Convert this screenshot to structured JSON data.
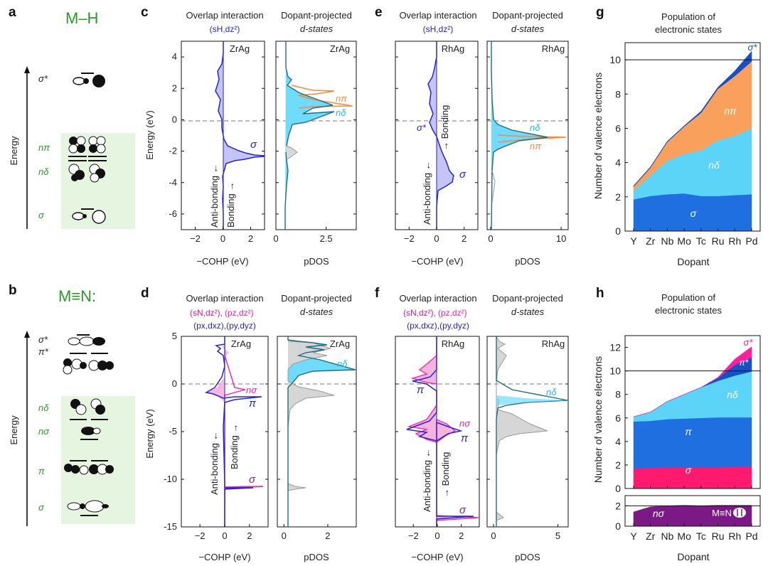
{
  "panel_letters": {
    "a": "a",
    "b": "b",
    "c": "c",
    "d": "d",
    "e": "e",
    "f": "f",
    "g": "g",
    "h": "h"
  },
  "mo_diagrams": [
    {
      "panel": "a",
      "formula": "M–H",
      "energy_label": "Energy",
      "levels": [
        {
          "label": "σ*"
        },
        {
          "label": "nπ"
        },
        {
          "label": "nδ"
        },
        {
          "label": "σ"
        }
      ]
    },
    {
      "panel": "b",
      "formula": "M≡N:",
      "energy_label": "Energy",
      "levels": [
        {
          "label": "σ*"
        },
        {
          "label": "π*"
        },
        {
          "label": "nδ"
        },
        {
          "label": "nσ"
        },
        {
          "label": "π"
        },
        {
          "label": "σ"
        }
      ]
    }
  ],
  "colors": {
    "cohp": "#2424d8",
    "cohp_fill": "#b4b4f0",
    "pink": "#ff1e9b",
    "pdos_cyan": "#4fd3ff",
    "pdos_line": "#1c7a8c",
    "orange": "#f58a3c",
    "gray": "#9a9a9a",
    "sigma_blue": "#1f6fe0",
    "ndelta": "#5bd4f8",
    "npi": "#f8a05c",
    "sigmastar": "#1450c8",
    "purple": "#7b1a86",
    "green_text": "#2a9a2a",
    "green_box": "#e6f5e0"
  },
  "chart_data": [
    {
      "panel": "c",
      "type": "line",
      "title": "Overlap interaction",
      "subtitle": "(sH,dz²)",
      "label": "ZrAg",
      "xlabel": "−COHP (eV)",
      "ylabel": "Energy (eV)",
      "xlim": [
        -3,
        3
      ],
      "ylim": [
        -7,
        5
      ],
      "xticks": [
        -2,
        0,
        2
      ],
      "yticks": [
        -6,
        -4,
        -2,
        0,
        2,
        4
      ],
      "annotations": [
        {
          "text": "σ",
          "x": 1.3,
          "y": -1.5
        },
        {
          "text": "Anti-bonding ←"
        },
        {
          "text": "Bonding →"
        }
      ]
    },
    {
      "panel": "c2",
      "type": "line",
      "title": "Dopant-projected",
      "subtitle": "d-states",
      "label": "ZrAg",
      "xlabel": "pDOS",
      "xlim": [
        0,
        4
      ],
      "ylim": [
        -7,
        5
      ],
      "xticks": [
        0,
        2.5
      ],
      "annotations": [
        {
          "text": "nπ",
          "x": 2.8,
          "y": 1.5
        },
        {
          "text": "nδ",
          "x": 2.8,
          "y": 0.5
        }
      ]
    },
    {
      "panel": "e",
      "type": "line",
      "title": "Overlap interaction",
      "subtitle": "(sH,dz²)",
      "label": "RhAg",
      "xlabel": "−COHP (eV)",
      "xlim": [
        -3,
        3
      ],
      "ylim": [
        -7,
        5
      ],
      "xticks": [
        -2,
        0,
        2
      ],
      "annotations": [
        {
          "text": "σ*",
          "x": -0.5,
          "y": -0.4
        },
        {
          "text": "σ",
          "x": 1.6,
          "y": -3.4
        },
        {
          "text": "Anti-bonding ←"
        },
        {
          "text": "→ Bonding"
        }
      ]
    },
    {
      "panel": "e2",
      "type": "line",
      "title": "Dopant-projected",
      "subtitle": "d-states",
      "label": "RhAg",
      "xlabel": "pDOS",
      "xlim": [
        -0.5,
        11
      ],
      "ylim": [
        -7,
        5
      ],
      "xticks": [
        0,
        10
      ],
      "annotations": [
        {
          "text": "nδ",
          "x": 5.5,
          "y": -0.4
        },
        {
          "text": "nπ",
          "x": 5.5,
          "y": -1.5
        }
      ]
    },
    {
      "panel": "d",
      "type": "line",
      "title": "Overlap interaction",
      "subtitle_line1": {
        "a": "(sN,dz²),",
        "b": "(pz,dz²)"
      },
      "subtitle_line2": "(px,dxz),(py,dyz)",
      "label": "ZrAg",
      "xlabel": "−COHP (eV)",
      "ylabel": "Energy (eV)",
      "xlim": [
        -3.5,
        3.5
      ],
      "ylim": [
        -15,
        5
      ],
      "xticks": [
        -2,
        0,
        2
      ],
      "yticks": [
        -15,
        -10,
        -5,
        0,
        5
      ],
      "annotations": [
        {
          "text": "nσ",
          "x": 1.3,
          "y": -0.5
        },
        {
          "text": "π",
          "x": 1.3,
          "y": -1.6
        },
        {
          "text": "σ",
          "x": 1.3,
          "y": -10.4
        },
        {
          "text": "Anti-bonding ←"
        },
        {
          "text": "Bonding →"
        }
      ]
    },
    {
      "panel": "d2",
      "type": "line",
      "title": "Dopant-projected",
      "subtitle": "d-states",
      "label": "ZrAg",
      "xlabel": "pDOS",
      "xlim": [
        -0.3,
        3.3
      ],
      "ylim": [
        -15,
        5
      ],
      "xticks": [
        0,
        2
      ],
      "annotations": [
        {
          "text": "nδ",
          "x": 2.2,
          "y": 1.6
        }
      ]
    },
    {
      "panel": "f",
      "type": "line",
      "title": "Overlap interaction",
      "subtitle_line1": {
        "a": "(sN,dz²),",
        "b": "(pz,dz²)"
      },
      "subtitle_line2": "(px,dxz),(py,dyz)",
      "label": "RhAg",
      "xlabel": "−COHP (eV)",
      "xlim": [
        -3.5,
        3.5
      ],
      "ylim": [
        -15,
        5
      ],
      "xticks": [
        -2,
        0,
        2
      ],
      "annotations": [
        {
          "text": "π",
          "x": -1.1,
          "y": -0.5
        },
        {
          "text": "nσ",
          "x": 1.3,
          "y": -4.3
        },
        {
          "text": "π",
          "x": 1.3,
          "y": -5.6
        },
        {
          "text": "σ",
          "x": 1.3,
          "y": -13.8
        },
        {
          "text": "Anti-bonding ←"
        },
        {
          "text": "→ Bonding"
        }
      ]
    },
    {
      "panel": "f2",
      "type": "line",
      "title": "Dopant-projected",
      "subtitle": "d-states",
      "label": "RhAg",
      "xlabel": "pDOS",
      "xlim": [
        -0.5,
        5.8
      ],
      "ylim": [
        -15,
        5
      ],
      "xticks": [
        0,
        5
      ],
      "annotations": [
        {
          "text": "nδ",
          "x": 3.6,
          "y": -0.5
        }
      ]
    },
    {
      "panel": "g",
      "type": "area",
      "title": "Population of",
      "title2": "electronic states",
      "xlabel": "Dopant",
      "ylabel": "Number of valence electrons",
      "categories": [
        "Y",
        "Zr",
        "Nb",
        "Mo",
        "Tc",
        "Ru",
        "Rh",
        "Pd"
      ],
      "ylim": [
        0,
        11
      ],
      "yticks": [
        0,
        2,
        4,
        6,
        8,
        10
      ],
      "reference_line": 10,
      "series": [
        {
          "name": "σ",
          "values": [
            1.85,
            2.05,
            2.15,
            2.2,
            2.05,
            2.05,
            2.1,
            2.15
          ]
        },
        {
          "name": "nδ",
          "values": [
            0.5,
            1.2,
            1.95,
            2.3,
            2.65,
            3.25,
            3.45,
            3.85
          ]
        },
        {
          "name": "nπ",
          "values": [
            0.25,
            0.45,
            1.1,
            1.6,
            2.2,
            3.0,
            3.5,
            3.9
          ]
        },
        {
          "name": "σ*",
          "values": [
            0.05,
            0.05,
            0.05,
            0.05,
            0.1,
            0.1,
            0.3,
            0.6
          ]
        }
      ]
    },
    {
      "panel": "h",
      "type": "area",
      "title": "Population of",
      "title2": "electronic states",
      "xlabel": "Dopant",
      "ylabel": "Number of valence electrons",
      "categories": [
        "Y",
        "Zr",
        "Nb",
        "Mo",
        "Tc",
        "Ru",
        "Rh",
        "Pd"
      ],
      "ylim": [
        0,
        13
      ],
      "yticks": [
        0,
        2,
        4,
        6,
        8,
        10,
        12
      ],
      "reference_line": 10,
      "series": [
        {
          "name": "σ",
          "values": [
            1.7,
            1.75,
            1.8,
            1.8,
            1.8,
            1.8,
            1.85,
            1.85
          ]
        },
        {
          "name": "π",
          "values": [
            4.0,
            4.0,
            4.1,
            4.15,
            4.2,
            4.25,
            4.2,
            4.2
          ]
        },
        {
          "name": "nδ",
          "values": [
            0.4,
            0.75,
            1.5,
            2.05,
            2.6,
            3.1,
            3.55,
            3.9
          ]
        },
        {
          "name": "π*",
          "values": [
            0,
            0,
            0,
            0,
            0,
            0.25,
            0.9,
            1.2
          ]
        },
        {
          "name": "σ*",
          "values": [
            0,
            0,
            0,
            0,
            0,
            0.05,
            0.5,
            0.9
          ]
        }
      ]
    },
    {
      "panel": "h_bottom",
      "type": "area",
      "xlabel": "Dopant",
      "label": "M≡N",
      "categories": [
        "Y",
        "Zr",
        "Nb",
        "Mo",
        "Tc",
        "Ru",
        "Rh",
        "Pd"
      ],
      "ylim": [
        0,
        3
      ],
      "yticks": [
        0,
        2
      ],
      "reference_line": 2,
      "series": [
        {
          "name": "nσ",
          "values": [
            1.4,
            1.9,
            2.0,
            2.05,
            2.0,
            2.05,
            2.05,
            2.05
          ]
        }
      ]
    }
  ]
}
